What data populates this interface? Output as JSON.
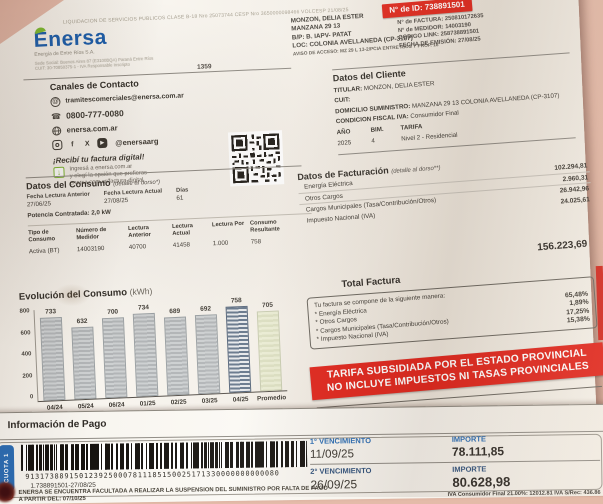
{
  "top_fineprint": "LIQUIDACION DE SERVICIOS PUBLICOS CLASE B-18 Nro 25073744 CESP Nro 3650000098466 VOLCESP 21/08/25",
  "brand": {
    "name": "Enersa",
    "tagline": "Energía de Entre Ríos S.A.",
    "address_line1": "Sede Social: Buenos Aires 87 (E3100BQA) Paraná Entre Ríos",
    "address_line2": "CUIT: 30-70850375-1 - IVA Responsable Inscripto",
    "blue": "#1c5da9",
    "green": "#7cb82f"
  },
  "recipient": {
    "name": "MONZON, DELIA ESTER",
    "line2": "MANZANA 29 13",
    "line3": "B/P: B. IAPV- PATAT",
    "line4": "LOC: COLONIA AVELLANEDA (CP-3107)",
    "line5": "AVISO DE ACCESO: MZ 29 L 13-2/PCIA ENTRE RIOS Y PROP. 18"
  },
  "id_block": {
    "badge": "N° de ID: 738891501",
    "badge_color": "#e02b1f",
    "lines": [
      {
        "label": "N° de FACTURA:",
        "value": "250810172635"
      },
      {
        "label": "N° de MEDIDOR:",
        "value": "14003190"
      },
      {
        "label": "CODIGO LINK:",
        "value": "258738891501"
      },
      {
        "label": "FECHA DE EMISIÓN:",
        "value": "27/08/25"
      }
    ]
  },
  "route_number": "1359",
  "contact": {
    "title": "Canales de Contacto",
    "email": "tramitescomerciales@enersa.com.ar",
    "phone": "0800-777-0080",
    "web": "enersa.com.ar",
    "social_handle": "@enersaarg",
    "digital_title": "¡Recibí tu factura digital!",
    "digital_line1": "Ingresá a enersa.com.ar",
    "digital_line2": "y elegí la opción que prefieras",
    "digital_line3": "enersa.com.ar/factura-digital"
  },
  "client": {
    "title": "Datos del Cliente",
    "titular_label": "TITULAR:",
    "titular": "MONZON, DELIA ESTER",
    "cuit_label": "CUIT:",
    "cuit": "",
    "domicilio_label": "DOMICILIO SUMINISTRO:",
    "domicilio": "MANZANA 29 13 COLONIA AVELLANEDA (CP-3107)",
    "condicion_label": "CONDICION FISCAL IVA:",
    "condicion": "Consumidor Final",
    "anio_label": "AÑO",
    "bim_label": "BIM.",
    "tarifa_label": "TARIFA",
    "anio": "2025",
    "bim": "4",
    "tarifa": "Nivel 2 - Residencial"
  },
  "consumo": {
    "title": "Datos del Consumo",
    "title_note": "(detalle al dorso*)",
    "fecha_anterior_label": "Fecha Lectura Anterior",
    "fecha_anterior": "27/06/25",
    "fecha_actual_label": "Fecha Lectura Actual",
    "fecha_actual": "27/08/25",
    "dias_label": "Días",
    "dias": "61",
    "potencia_label": "Potencia Contratada:",
    "potencia": "2,0 kW",
    "table": {
      "headers": [
        "Tipo de Consumo",
        "Número de Medidor",
        "Lectura Anterior",
        "Lectura Actual",
        "Lectura Por",
        "Consumo Resultante"
      ],
      "row": [
        "Activa (BT)",
        "14003190",
        "40700",
        "41458",
        "1.000",
        "758"
      ]
    }
  },
  "facturacion": {
    "title": "Datos de Facturación",
    "title_note": "(detalle al dorso**)",
    "items": [
      {
        "label": "Energía Eléctrica",
        "amount": "102.294,81"
      },
      {
        "label": "Otros Cargos",
        "amount": "2.960,31"
      },
      {
        "label": "Cargos Municipales (Tasa/Contribución/Otros)",
        "amount": "26.942,96"
      },
      {
        "label": "Impuesto Nacional (IVA)",
        "amount": "24.025,61"
      }
    ]
  },
  "total": {
    "label": "Total Factura",
    "amount": "156.223,69",
    "breakdown_title": "Tu factura se compone de la siguiente manera:",
    "items": [
      {
        "label": "* Energía Eléctrica",
        "pct": "65,48%"
      },
      {
        "label": "* Otros Cargos",
        "pct": "1,89%"
      },
      {
        "label": "* Cargos Municipales (Tasa/Contribución/Otros)",
        "pct": "17,25%"
      },
      {
        "label": "* Impuesto Nacional (IVA)",
        "pct": "15,38%"
      }
    ]
  },
  "banner": {
    "line1": "TARIFA SUBSIDIADA POR EL ESTADO PROVINCIAL",
    "line2": "NO INCLUYE IMPUESTOS NI TASAS PROVINCIALES",
    "bg": "#e1261c"
  },
  "payment": {
    "title": "Información de Pago",
    "cuota": "CUOTA 1",
    "barcode_digits": "9131738891501239250007811185150025171330000000000080",
    "ref": "1.738891501-27/08/25",
    "warning_line1": "ENERSA SE ENCUENTRA FACULTADA A REALIZAR LA SUSPENSION DEL SUMINISTRO POR FALTA DE PAGO",
    "warning_line2": "A PARTIR DEL: 07/10/25",
    "venc1_label": "1° VENCIMIENTO",
    "importe_label": "IMPORTE",
    "venc1_date": "11/09/25",
    "venc1_amount": "78.111,85",
    "venc2_label": "2° VENCIMIENTO",
    "venc2_date": "26/09/25",
    "venc2_amount": "80.628,98",
    "iva_note": "IVA Consumidor Final 21.00%: 12012.81 IVA S/Rec: 436.86"
  },
  "chart_data": {
    "type": "bar",
    "title": "Evolución del Consumo",
    "title_unit": "(kWh)",
    "categories": [
      "04/24",
      "05/24",
      "06/24",
      "01/25",
      "02/25",
      "03/25",
      "04/25",
      "Promedio"
    ],
    "values": [
      733,
      632,
      700,
      734,
      689,
      692,
      758,
      705
    ],
    "xlabel": "",
    "ylabel": "",
    "ylim": [
      0,
      800
    ],
    "yticks": [
      0,
      200,
      400,
      600,
      800
    ],
    "grid": false,
    "legend": "none",
    "highlight_index": 6,
    "average_index": 7
  }
}
